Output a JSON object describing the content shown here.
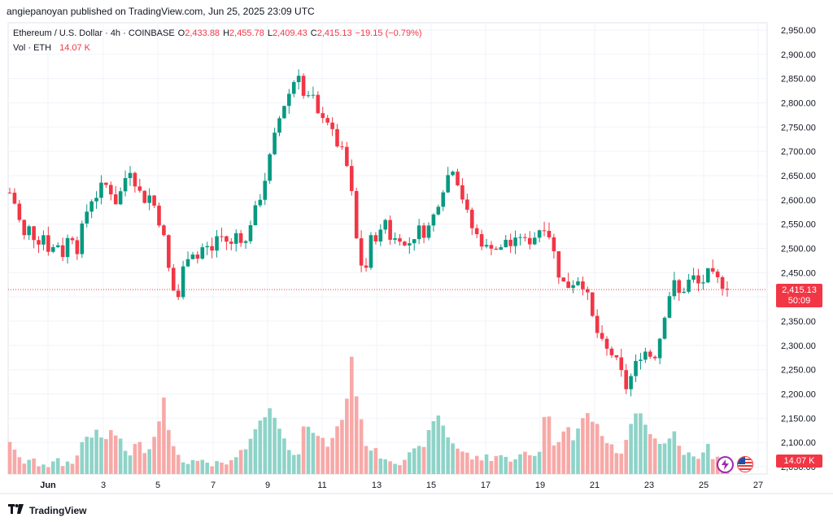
{
  "header": {
    "publisher": "angiepanoyan published on TradingView.com, Jun 25, 2025 23:09 UTC"
  },
  "legend": {
    "symbol": "Ethereum / U.S. Dollar · 4h · COINBASE",
    "open_label": "O",
    "open": "2,433.88",
    "high_label": "H",
    "high": "2,455.78",
    "low_label": "L",
    "low": "2,409.43",
    "close_label": "C",
    "close": "2,415.13",
    "change": "−19.15 (−0.79%)",
    "vol_label": "Vol · ETH",
    "vol": "14.07 K"
  },
  "price_badge": {
    "price": "2,415.13",
    "countdown": "50:09",
    "color": "#f23645"
  },
  "volume_badge": {
    "value": "14.07 K"
  },
  "footer": {
    "brand": "TradingView"
  },
  "icons": [
    "tradingview-logo-icon",
    "lightning-icon",
    "us-flag-icon"
  ],
  "chart_data": {
    "type": "candlestick",
    "title": "",
    "x_tick_labels": [
      "Jun",
      "3",
      "5",
      "7",
      "9",
      "11",
      "13",
      "15",
      "17",
      "19",
      "21",
      "23",
      "25",
      "27"
    ],
    "y_tick_labels": [
      "2,950.00",
      "2,900.00",
      "2,850.00",
      "2,800.00",
      "2,750.00",
      "2,700.00",
      "2,650.00",
      "2,600.00",
      "2,550.00",
      "2,500.00",
      "2,450.00",
      "2,400.00",
      "2,350.00",
      "2,300.00",
      "2,250.00",
      "2,200.00",
      "2,150.00",
      "2,100.00",
      "2,050.00"
    ],
    "ylim": [
      2035,
      2965
    ],
    "last_price": 2415.13,
    "grid": true,
    "up_color": "#089981",
    "down_color": "#f23645",
    "interval": "4h",
    "price_path": [
      2615,
      2585,
      2520,
      2545,
      2510,
      2530,
      2490,
      2515,
      2485,
      2540,
      2495,
      2555,
      2600,
      2610,
      2635,
      2620,
      2590,
      2640,
      2665,
      2625,
      2600,
      2610,
      2570,
      2520,
      2430,
      2390,
      2470,
      2500,
      2480,
      2510,
      2490,
      2530,
      2520,
      2505,
      2540,
      2500,
      2560,
      2590,
      2640,
      2700,
      2760,
      2800,
      2830,
      2870,
      2800,
      2820,
      2770,
      2780,
      2740,
      2710,
      2690,
      2610,
      2480,
      2450,
      2530,
      2520,
      2560,
      2510,
      2530,
      2500,
      2520,
      2540,
      2530,
      2560,
      2600,
      2640,
      2670,
      2630,
      2580,
      2540,
      2520,
      2500,
      2510,
      2490,
      2520,
      2500,
      2530,
      2510,
      2520,
      2540,
      2550,
      2500,
      2440,
      2420,
      2430,
      2440,
      2410,
      2350,
      2310,
      2290,
      2280,
      2250,
      2210,
      2250,
      2280,
      2290,
      2270,
      2320,
      2390,
      2430,
      2400,
      2430,
      2440,
      2420,
      2450,
      2440,
      2430,
      2415
    ],
    "volume_profile": [
      42,
      20,
      15,
      18,
      12,
      14,
      10,
      16,
      12,
      15,
      20,
      45,
      48,
      50,
      40,
      52,
      48,
      30,
      25,
      40,
      30,
      35,
      55,
      100,
      40,
      20,
      15,
      18,
      12,
      14,
      10,
      12,
      10,
      14,
      20,
      30,
      50,
      60,
      70,
      85,
      60,
      40,
      30,
      25,
      70,
      45,
      50,
      35,
      40,
      60,
      75,
      145,
      80,
      40,
      30,
      25,
      20,
      18,
      15,
      20,
      25,
      30,
      40,
      60,
      75,
      50,
      40,
      30,
      25,
      20,
      18,
      22,
      20,
      25,
      18,
      20,
      22,
      25,
      20,
      30,
      90,
      40,
      35,
      70,
      45,
      60,
      75,
      65,
      55,
      40,
      30,
      25,
      40,
      70,
      80,
      60,
      45,
      40,
      35,
      55,
      30,
      25,
      20,
      15,
      38,
      20,
      15,
      10
    ]
  }
}
